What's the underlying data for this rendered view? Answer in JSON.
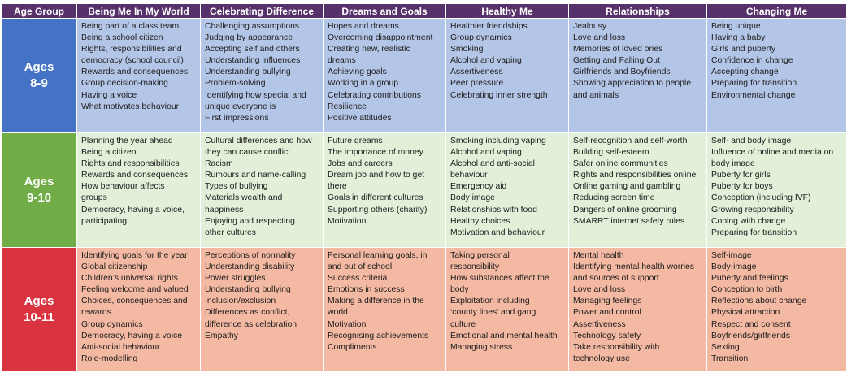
{
  "header": [
    "Age Group",
    "Being Me In My World",
    "Celebrating Difference",
    "Dreams and Goals",
    "Healthy Me",
    "Relationships",
    "Changing Me"
  ],
  "rows": [
    {
      "age_line1": "Ages",
      "age_line2": "8-9",
      "color": "#4472c4",
      "cells": [
        [
          "Being part of a class team",
          "Being a school citizen",
          "Rights, responsibilities and",
          "democracy (school council)",
          "Rewards and consequences",
          "Group decision-making",
          "Having a voice",
          "What motivates behaviour"
        ],
        [
          "Challenging assumptions",
          "Judging by appearance",
          "Accepting self and others",
          "Understanding influences",
          "Understanding bullying",
          "Problem-solving",
          "Identifying how special and",
          "unique everyone is",
          "First impressions"
        ],
        [
          "Hopes and dreams",
          "Overcoming disappointment",
          "Creating new, realistic",
          "dreams",
          "Achieving goals",
          "Working in a group",
          "Celebrating contributions",
          "Resilience",
          "Positive attitudes"
        ],
        [
          "Healthier friendships",
          "Group dynamics",
          "Smoking",
          "Alcohol and vaping",
          "Assertiveness",
          "Peer pressure",
          "Celebrating inner strength"
        ],
        [
          "Jealousy",
          "Love and loss",
          "Memories of loved ones",
          "Getting and Falling Out",
          "Girlfriends and Boyfriends",
          "Showing appreciation to people",
          "and animals"
        ],
        [
          "Being unique",
          "Having a baby",
          "Girls and puberty",
          "Confidence in change",
          "Accepting change",
          "Preparing for transition",
          "Environmental change"
        ]
      ]
    },
    {
      "age_line1": "Ages",
      "age_line2": "9-10",
      "color": "#70ad47",
      "cells": [
        [
          "Planning the year ahead",
          "Being a citizen",
          "Rights and responsibilities",
          "Rewards and consequences",
          "How behaviour affects",
          "groups",
          "Democracy, having a voice,",
          "participating"
        ],
        [
          "Cultural differences and how",
          "they can cause conflict",
          "Racism",
          "Rumours and name-calling",
          "Types of bullying",
          "Materials wealth and",
          "happiness",
          "Enjoying and respecting",
          "other cultures"
        ],
        [
          "Future dreams",
          "The importance of money",
          "Jobs and careers",
          "Dream job and how to get",
          "there",
          "Goals in different cultures",
          "Supporting others (charity)",
          "Motivation"
        ],
        [
          "Smoking including vaping",
          "Alcohol and vaping",
          "Alcohol and anti-social",
          "behaviour",
          "Emergency aid",
          "Body image",
          "Relationships with food",
          "Healthy choices",
          "Motivation and behaviour"
        ],
        [
          "Self-recognition and self-worth",
          "Building self-esteem",
          "Safer online communities",
          "Rights and responsibilities online",
          "Online gaming and gambling",
          "Reducing screen time",
          "Dangers of online grooming",
          "SMARRT internet safety rules"
        ],
        [
          "Self- and body image",
          "Influence of online and media on",
          "body image",
          "Puberty for girls",
          "Puberty for boys",
          "Conception (including IVF)",
          "Growing responsibility",
          "Coping with change",
          "Preparing for transition"
        ]
      ]
    },
    {
      "age_line1": "Ages",
      "age_line2": "10-11",
      "color": "#d9333f",
      "cells": [
        [
          "Identifying goals for the year",
          "Global citizenship",
          "Children’s universal rights",
          "Feeling welcome and valued",
          "Choices, consequences and",
          "rewards",
          "Group dynamics",
          "Democracy, having a voice",
          "Anti-social behaviour",
          "Role-modelling"
        ],
        [
          "Perceptions of normality",
          "Understanding disability",
          "Power struggles",
          "Understanding bullying",
          "Inclusion/exclusion",
          "Differences as conflict,",
          "difference as celebration",
          "Empathy"
        ],
        [
          "Personal learning goals, in",
          "and out of school",
          "Success criteria",
          "Emotions in success",
          "Making a difference in the",
          "world",
          "Motivation",
          "Recognising achievements",
          "Compliments"
        ],
        [
          "Taking personal",
          "responsibility",
          "How substances affect the",
          "body",
          "Exploitation including",
          "‘county lines’ and gang",
          "culture",
          "Emotional and mental health",
          "Managing stress"
        ],
        [
          "Mental health",
          "Identifying mental health worries",
          "and sources of support",
          "Love and loss",
          "Managing feelings",
          "Power and control",
          "Assertiveness",
          "Technology safety",
          "Take responsibility with",
          "technology use"
        ],
        [
          "Self-image",
          "Body-image",
          "Puberty and feelings",
          "Conception to birth",
          "Reflections about change",
          "Physical attraction",
          "Respect and consent",
          "Boyfriends/girlfriends",
          "Sexting",
          "Transition"
        ]
      ]
    }
  ]
}
